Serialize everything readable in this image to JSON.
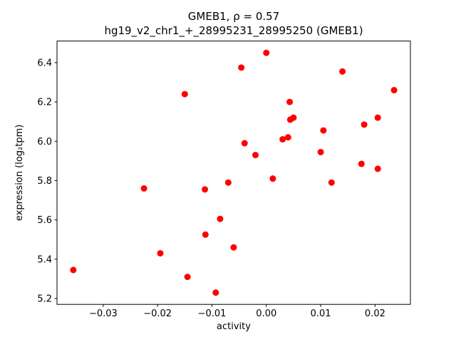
{
  "figure": {
    "background": "#ffffff"
  },
  "chart_data": {
    "type": "scatter",
    "title": "GMEB1, ρ = 0.57",
    "subtitle": "hg19_v2_chr1_+_28995231_28995250 (GMEB1)",
    "xlabel": "activity",
    "ylabel": "expression (log₂tpm)",
    "xlim": [
      -0.0385,
      0.0265
    ],
    "ylim": [
      5.17,
      6.51
    ],
    "xticks": [
      -0.03,
      -0.02,
      -0.01,
      0.0,
      0.01,
      0.02
    ],
    "yticks": [
      5.2,
      5.4,
      5.6,
      5.8,
      6.0,
      6.2,
      6.4
    ],
    "grid": false,
    "legend": "none",
    "marker_color": "#ff0000",
    "marker_radius": 4.5,
    "points": [
      [
        -0.0355,
        5.345
      ],
      [
        -0.0225,
        5.76
      ],
      [
        -0.0195,
        5.43
      ],
      [
        -0.015,
        6.24
      ],
      [
        -0.0145,
        5.31
      ],
      [
        -0.0113,
        5.755
      ],
      [
        -0.0112,
        5.525
      ],
      [
        -0.0093,
        5.23
      ],
      [
        -0.0085,
        5.605
      ],
      [
        -0.007,
        5.79
      ],
      [
        -0.006,
        5.46
      ],
      [
        -0.0046,
        6.375
      ],
      [
        -0.004,
        5.99
      ],
      [
        -0.002,
        5.93
      ],
      [
        0.0,
        6.45
      ],
      [
        0.0012,
        5.81
      ],
      [
        0.003,
        6.01
      ],
      [
        0.004,
        6.02
      ],
      [
        0.0043,
        6.2
      ],
      [
        0.0044,
        6.11
      ],
      [
        0.005,
        6.12
      ],
      [
        0.01,
        5.945
      ],
      [
        0.0105,
        6.055
      ],
      [
        0.012,
        5.79
      ],
      [
        0.014,
        6.355
      ],
      [
        0.0175,
        5.885
      ],
      [
        0.018,
        6.085
      ],
      [
        0.0205,
        5.86
      ],
      [
        0.0205,
        6.12
      ],
      [
        0.0235,
        6.26
      ]
    ]
  }
}
